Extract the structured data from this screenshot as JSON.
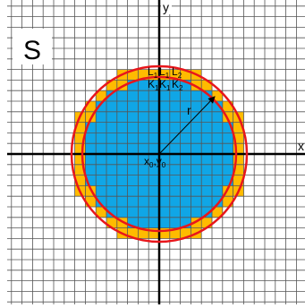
{
  "diagram": {
    "panel_label": "S",
    "axis_x_label": "x",
    "axis_y_label": "y",
    "radius_label": "r",
    "center_label": {
      "x_part": "x",
      "x_sub": "0",
      "sep": ",",
      "y_part": "y",
      "y_sub": "0"
    },
    "top_row_labels": [
      {
        "main": "L",
        "sub": "1"
      },
      {
        "main": "L",
        "sub": "1"
      },
      {
        "main": "L",
        "sub": "2"
      }
    ],
    "second_row_labels": [
      {
        "main": "K",
        "sub": "1"
      },
      {
        "main": "K",
        "sub": "1"
      },
      {
        "main": "K",
        "sub": "2"
      }
    ],
    "colors": {
      "grid": "#555555",
      "axis": "#000000",
      "inner_fill": "#10a6e6",
      "outer_fill": "#ffbb00",
      "circle": "#e8161b",
      "radius_arrow": "#000000"
    },
    "grid_cells": {
      "cols": 29,
      "rows": 29
    },
    "circles": {
      "inner_radius_cells": 7.3,
      "outer_radius_cells": 8.3
    }
  }
}
